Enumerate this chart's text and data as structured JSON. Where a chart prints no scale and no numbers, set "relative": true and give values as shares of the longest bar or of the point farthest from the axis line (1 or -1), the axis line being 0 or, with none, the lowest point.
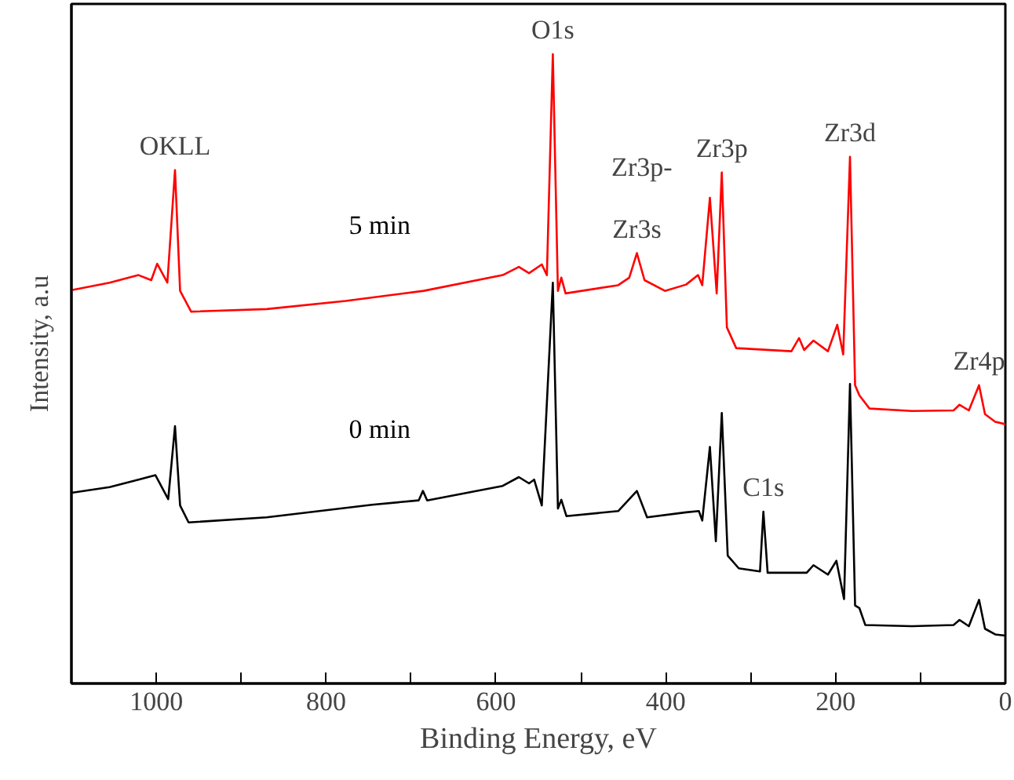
{
  "chart_data": {
    "type": "line",
    "relative": true,
    "xlabel": "Binding Energy, eV",
    "ylabel": "Intensity, a.u",
    "xlim": [
      1100,
      0
    ],
    "xticks": [
      {
        "value": 1000,
        "label": "1000"
      },
      {
        "value": 900,
        "label": null
      },
      {
        "value": 800,
        "label": "800"
      },
      {
        "value": 700,
        "label": null
      },
      {
        "value": 600,
        "label": "600"
      },
      {
        "value": 500,
        "label": null
      },
      {
        "value": 400,
        "label": "400"
      },
      {
        "value": 300,
        "label": null
      },
      {
        "value": 200,
        "label": "200"
      },
      {
        "value": 100,
        "label": null
      },
      {
        "value": 0,
        "label": "0"
      }
    ],
    "tick_labels": "x",
    "grid": false,
    "legend": false,
    "marker": "none",
    "line_style": "solid",
    "series": [
      {
        "name": "5 min",
        "color": "#ff0000",
        "x": [
          1100,
          1055,
          1021,
          1006,
          999,
          987,
          978,
          972,
          959,
          870,
          777,
          685,
          592,
          573,
          561,
          546,
          540,
          533,
          527,
          523,
          518,
          456,
          443,
          434,
          425,
          401,
          376,
          362,
          357,
          348,
          340,
          334,
          328,
          317,
          252,
          243,
          237,
          226,
          209,
          198,
          191,
          183,
          177,
          172,
          160,
          110,
          61,
          54,
          43,
          31,
          24,
          12,
          0
        ],
        "values": [
          0.625,
          0.637,
          0.649,
          0.641,
          0.667,
          0.637,
          0.816,
          0.624,
          0.591,
          0.595,
          0.608,
          0.624,
          0.649,
          0.662,
          0.652,
          0.666,
          0.649,
          1.0,
          0.624,
          0.645,
          0.62,
          0.633,
          0.645,
          0.684,
          0.641,
          0.624,
          0.634,
          0.649,
          0.633,
          0.772,
          0.62,
          0.812,
          0.566,
          0.533,
          0.528,
          0.549,
          0.53,
          0.545,
          0.528,
          0.57,
          0.523,
          0.837,
          0.474,
          0.458,
          0.437,
          0.433,
          0.434,
          0.443,
          0.434,
          0.474,
          0.428,
          0.416,
          0.412
        ]
      },
      {
        "name": "0 min",
        "color": "#000000",
        "x": [
          1100,
          1055,
          1021,
          1001,
          986,
          978,
          972,
          962,
          870,
          746,
          691,
          686,
          681,
          592,
          573,
          561,
          555,
          546,
          533,
          527,
          523,
          517,
          456,
          434,
          422,
          376,
          361,
          357,
          348,
          341,
          334,
          327,
          314,
          289,
          285,
          280,
          234,
          226,
          209,
          199,
          190,
          183,
          177,
          172,
          165,
          110,
          61,
          54,
          43,
          31,
          24,
          12,
          0
        ],
        "values": [
          0.303,
          0.312,
          0.324,
          0.331,
          0.293,
          0.409,
          0.283,
          0.256,
          0.264,
          0.284,
          0.291,
          0.306,
          0.291,
          0.314,
          0.328,
          0.318,
          0.324,
          0.283,
          0.637,
          0.278,
          0.292,
          0.266,
          0.274,
          0.306,
          0.264,
          0.272,
          0.274,
          0.259,
          0.376,
          0.226,
          0.43,
          0.203,
          0.183,
          0.178,
          0.273,
          0.176,
          0.176,
          0.188,
          0.173,
          0.195,
          0.134,
          0.476,
          0.124,
          0.12,
          0.093,
          0.091,
          0.093,
          0.101,
          0.091,
          0.133,
          0.087,
          0.078,
          0.076
        ]
      }
    ],
    "annotations": [
      {
        "text": "OKLL",
        "x": 978,
        "y": 0.816
      },
      {
        "text": "O1s",
        "x": 533,
        "y": 1.0
      },
      {
        "text": "Zr3s",
        "x": 434,
        "y": 0.684
      },
      {
        "text": "Zr3p-",
        "x": 348,
        "y": 0.772
      },
      {
        "text": "Zr3p",
        "x": 334,
        "y": 0.812
      },
      {
        "text": "Zr3d",
        "x": 183,
        "y": 0.837
      },
      {
        "text": "Zr4p",
        "x": 31,
        "y": 0.474
      },
      {
        "text": "C1s",
        "x": 285,
        "y": 0.273
      }
    ]
  }
}
